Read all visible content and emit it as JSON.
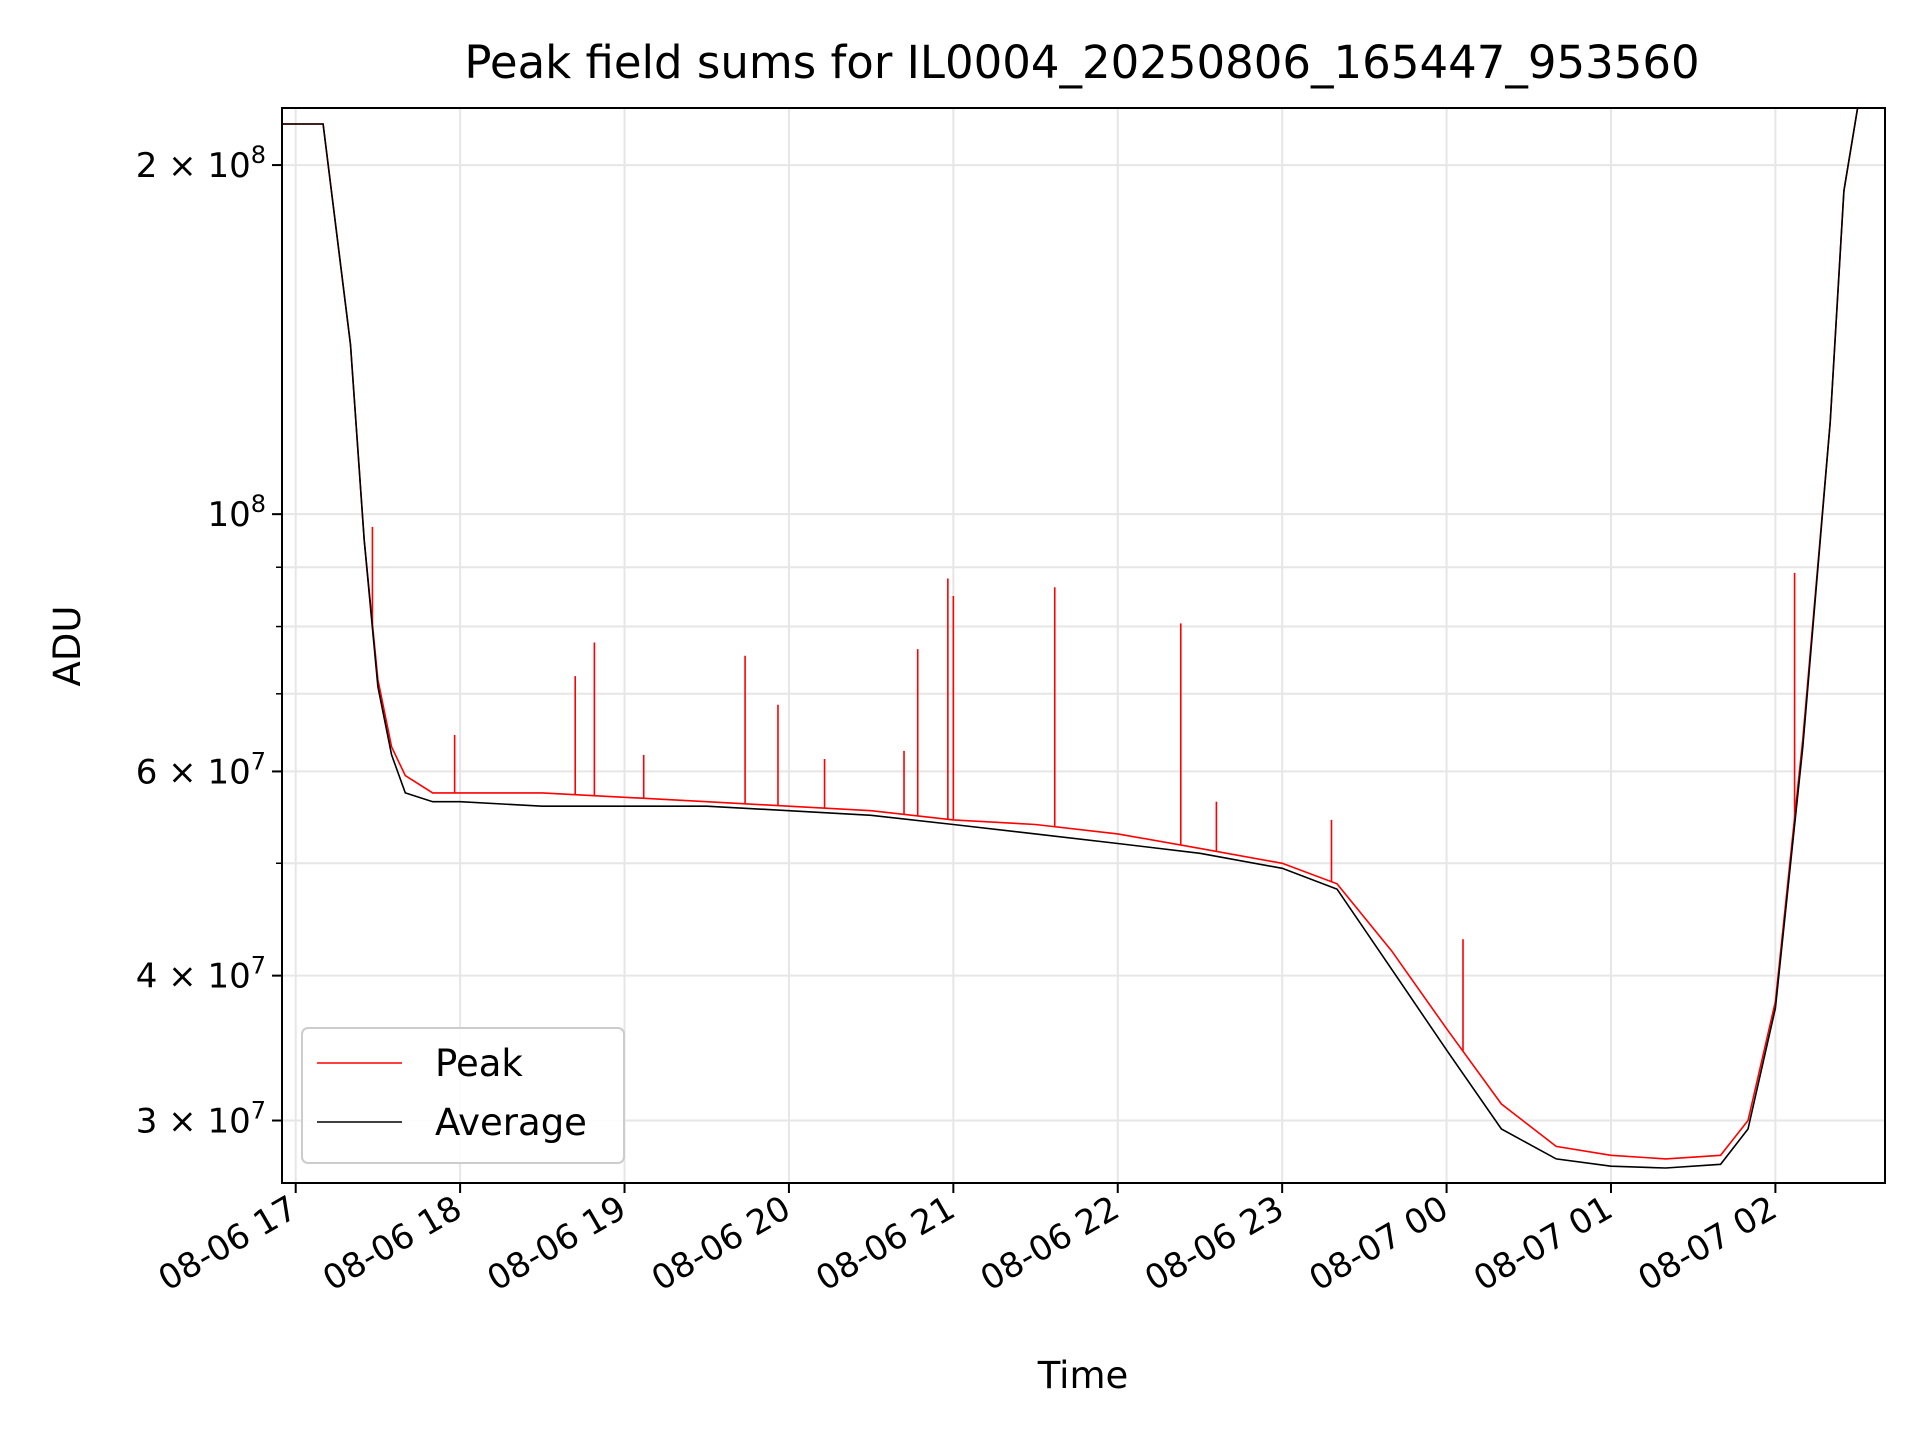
{
  "chart_data": {
    "type": "line",
    "title": "Peak field sums for IL0004_20250806_165447_953560",
    "xlabel": "Time",
    "ylabel": "ADU",
    "yscale": "log",
    "xlim": [
      "08-06 16:55",
      "08-07 02:40"
    ],
    "ylim": [
      26500000,
      224000000
    ],
    "grid": true,
    "legend_placement": "lower-left",
    "x_ticks": [
      "08-06 17",
      "08-06 18",
      "08-06 19",
      "08-06 20",
      "08-06 21",
      "08-06 22",
      "08-06 23",
      "08-07 00",
      "08-07 01",
      "08-07 02"
    ],
    "y_ticks": [
      {
        "value": 30000000,
        "mantissa": "3",
        "exp": "7"
      },
      {
        "value": 40000000,
        "mantissa": "4",
        "exp": "7"
      },
      {
        "value": 60000000,
        "mantissa": "6",
        "exp": "7"
      },
      {
        "value": 100000000,
        "mantissa": "",
        "exp": "8"
      },
      {
        "value": 200000000,
        "mantissa": "2",
        "exp": "8"
      }
    ],
    "series": [
      {
        "name": "Peak",
        "color": "#ff0000",
        "x": [
          "08-06 16:55",
          "08-06 17:10",
          "08-06 17:20",
          "08-06 17:25",
          "08-06 17:30",
          "08-06 17:35",
          "08-06 17:40",
          "08-06 17:50",
          "08-06 18:00",
          "08-06 18:30",
          "08-06 19:00",
          "08-06 19:30",
          "08-06 20:00",
          "08-06 20:30",
          "08-06 21:00",
          "08-06 21:30",
          "08-06 22:00",
          "08-06 22:30",
          "08-06 23:00",
          "08-06 23:20",
          "08-06 23:40",
          "08-07 00:00",
          "08-07 00:20",
          "08-07 00:40",
          "08-07 01:00",
          "08-07 01:20",
          "08-07 01:40",
          "08-07 01:50",
          "08-07 02:00",
          "08-07 02:10",
          "08-07 02:20",
          "08-07 02:25",
          "08-07 02:30",
          "08-07 02:40"
        ],
        "values": [
          217000000,
          217000000,
          140000000,
          95000000,
          72000000,
          63000000,
          59500000,
          57500000,
          57500000,
          57500000,
          57000000,
          56500000,
          56000000,
          55500000,
          54500000,
          54000000,
          53000000,
          51500000,
          50000000,
          48000000,
          42000000,
          36000000,
          31000000,
          28500000,
          28000000,
          27800000,
          28000000,
          30000000,
          38000000,
          64000000,
          120000000,
          190000000,
          224000000,
          224000000
        ]
      },
      {
        "name": "Average",
        "color": "#000000",
        "x": [
          "08-06 16:55",
          "08-06 17:10",
          "08-06 17:20",
          "08-06 17:25",
          "08-06 17:30",
          "08-06 17:35",
          "08-06 17:40",
          "08-06 17:50",
          "08-06 18:00",
          "08-06 18:30",
          "08-06 19:00",
          "08-06 19:30",
          "08-06 20:00",
          "08-06 20:30",
          "08-06 21:00",
          "08-06 21:30",
          "08-06 22:00",
          "08-06 22:30",
          "08-06 23:00",
          "08-06 23:20",
          "08-06 23:40",
          "08-07 00:00",
          "08-07 00:20",
          "08-07 00:40",
          "08-07 01:00",
          "08-07 01:20",
          "08-07 01:40",
          "08-07 01:50",
          "08-07 02:00",
          "08-07 02:10",
          "08-07 02:20",
          "08-07 02:25",
          "08-07 02:30",
          "08-07 02:40"
        ],
        "values": [
          217000000,
          217000000,
          140000000,
          95000000,
          71000000,
          62000000,
          57500000,
          56500000,
          56500000,
          56000000,
          56000000,
          56000000,
          55500000,
          55000000,
          54000000,
          53000000,
          52000000,
          51000000,
          49500000,
          47500000,
          40500000,
          34500000,
          29500000,
          27800000,
          27400000,
          27300000,
          27500000,
          29500000,
          37500000,
          63000000,
          120000000,
          190000000,
          224000000,
          224000000
        ]
      }
    ],
    "peak_spikes": [
      {
        "x": "08-06 17:28",
        "value": 97500000
      },
      {
        "x": "08-06 17:58",
        "value": 64500000
      },
      {
        "x": "08-06 18:42",
        "value": 72500000
      },
      {
        "x": "08-06 18:49",
        "value": 77500000
      },
      {
        "x": "08-06 19:07",
        "value": 62000000
      },
      {
        "x": "08-06 19:44",
        "value": 75500000
      },
      {
        "x": "08-06 19:56",
        "value": 68500000
      },
      {
        "x": "08-06 20:13",
        "value": 61500000
      },
      {
        "x": "08-06 20:42",
        "value": 62500000
      },
      {
        "x": "08-06 20:47",
        "value": 76500000
      },
      {
        "x": "08-06 20:58",
        "value": 88000000
      },
      {
        "x": "08-06 21:00",
        "value": 85000000
      },
      {
        "x": "08-06 21:37",
        "value": 86500000
      },
      {
        "x": "08-06 22:23",
        "value": 80500000
      },
      {
        "x": "08-06 22:36",
        "value": 56500000
      },
      {
        "x": "08-06 23:18",
        "value": 54500000
      },
      {
        "x": "08-07 00:06",
        "value": 43000000
      },
      {
        "x": "08-07 02:07",
        "value": 89000000
      }
    ]
  }
}
